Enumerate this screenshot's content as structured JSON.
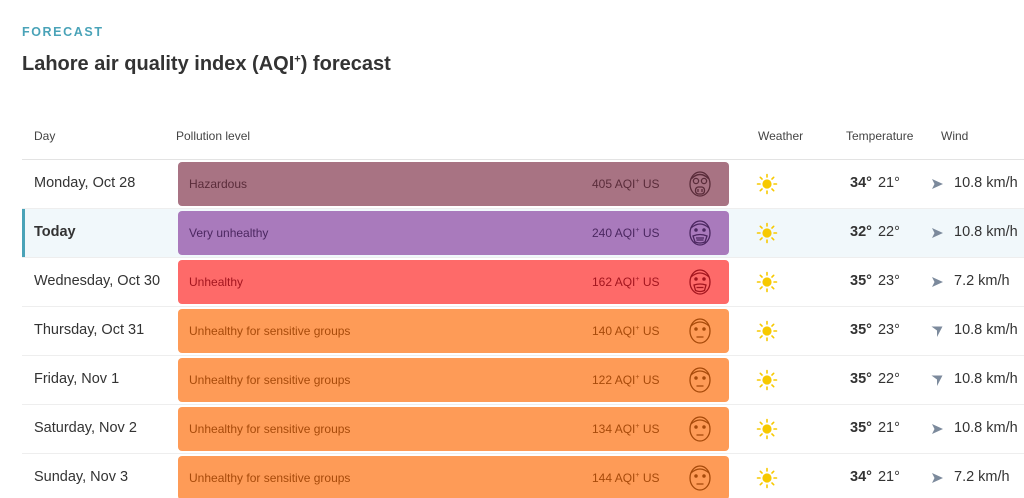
{
  "header": {
    "eyebrow": "FORECAST",
    "title_prefix": "Lahore air quality index (AQI",
    "title_sup": "+",
    "title_suffix": ") forecast"
  },
  "columns": {
    "day": "Day",
    "pollution": "Pollution level",
    "weather": "Weather",
    "temperature": "Temperature",
    "wind": "Wind"
  },
  "aqi_unit": "AQI",
  "aqi_unit_sup": "+",
  "aqi_region": "US",
  "colors": {
    "accent": "#4aa3b8",
    "hazardous": "#a87383",
    "very_unhealthy": "#a97abc",
    "unhealthy": "#fe6a69",
    "unhealthy_sensitive": "#fe9b57",
    "sun": "#f7c900",
    "arrow": "#7c8a9c"
  },
  "rows": [
    {
      "day": "Monday, Oct 28",
      "level": "Hazardous",
      "aqi": "405",
      "weather_icon": "sun-icon",
      "face_icon": "gas-mask-face-icon",
      "temp_high": "34°",
      "temp_low": "21°",
      "wind_direction_icon": "arrow-right-icon",
      "wind": "10.8 km/h"
    },
    {
      "day": "Today",
      "level": "Very unhealthy",
      "aqi": "240",
      "weather_icon": "sun-icon",
      "face_icon": "mask-face-icon",
      "temp_high": "32°",
      "temp_low": "22°",
      "wind_direction_icon": "arrow-right-icon",
      "wind": "10.8 km/h"
    },
    {
      "day": "Wednesday, Oct 30",
      "level": "Unhealthy",
      "aqi": "162",
      "weather_icon": "sun-icon",
      "face_icon": "mask-face-icon",
      "temp_high": "35°",
      "temp_low": "23°",
      "wind_direction_icon": "arrow-right-icon",
      "wind": "7.2 km/h"
    },
    {
      "day": "Thursday, Oct 31",
      "level": "Unhealthy for sensitive groups",
      "aqi": "140",
      "weather_icon": "sun-icon",
      "face_icon": "neutral-face-icon",
      "temp_high": "35°",
      "temp_low": "23°",
      "wind_direction_icon": "arrow-down-icon",
      "wind": "10.8 km/h"
    },
    {
      "day": "Friday, Nov 1",
      "level": "Unhealthy for sensitive groups",
      "aqi": "122",
      "weather_icon": "sun-icon",
      "face_icon": "neutral-face-icon",
      "temp_high": "35°",
      "temp_low": "22°",
      "wind_direction_icon": "arrow-down-icon",
      "wind": "10.8 km/h"
    },
    {
      "day": "Saturday, Nov 2",
      "level": "Unhealthy for sensitive groups",
      "aqi": "134",
      "weather_icon": "sun-icon",
      "face_icon": "neutral-face-icon",
      "temp_high": "35°",
      "temp_low": "21°",
      "wind_direction_icon": "arrow-right-icon",
      "wind": "10.8 km/h"
    },
    {
      "day": "Sunday, Nov 3",
      "level": "Unhealthy for sensitive groups",
      "aqi": "144",
      "weather_icon": "sun-icon",
      "face_icon": "neutral-face-icon",
      "temp_high": "34°",
      "temp_low": "21°",
      "wind_direction_icon": "arrow-right-icon",
      "wind": "7.2 km/h"
    }
  ]
}
